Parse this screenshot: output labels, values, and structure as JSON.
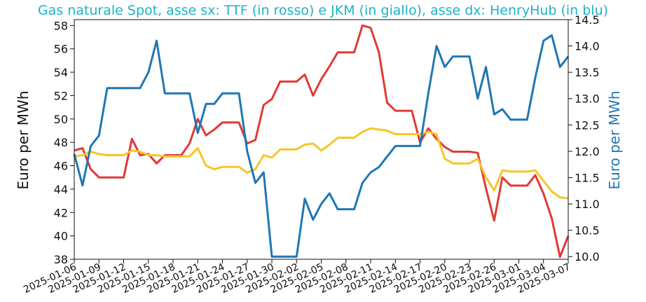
{
  "chart_data": {
    "type": "line",
    "title": "Gas naturale Spot, asse sx: TTF (in rosso) e JKM (in giallo), asse dx: HenryHub (in blu)",
    "ylabel_left": "Euro per MWh",
    "ylabel_right": "Euro per MWh",
    "ylim_left": [
      38,
      58.5
    ],
    "ylim_right": [
      9.95,
      14.5
    ],
    "yticks_left": [
      38,
      40,
      42,
      44,
      46,
      48,
      50,
      52,
      54,
      56,
      58
    ],
    "yticks_right": [
      "10.0",
      "10.5",
      "11.0",
      "11.5",
      "12.0",
      "12.5",
      "13.0",
      "13.5",
      "14.0",
      "14.5"
    ],
    "xticks": [
      "2025-01-06",
      "2025-01-09",
      "2025-01-12",
      "2025-01-15",
      "2025-01-18",
      "2025-01-21",
      "2025-01-24",
      "2025-01-27",
      "2025-01-30",
      "2025-02-02",
      "2025-02-05",
      "2025-02-08",
      "2025-02-11",
      "2025-02-14",
      "2025-02-17",
      "2025-02-20",
      "2025-02-23",
      "2025-02-26",
      "2025-03-01",
      "2025-03-04",
      "2025-03-07"
    ],
    "grid": false,
    "series": [
      {
        "name": "TTF (in rosso)",
        "axis": "left",
        "color": "#e03a33",
        "points": [
          [
            "2025-01-06",
            47.3
          ],
          [
            "2025-01-07",
            47.5
          ],
          [
            "2025-01-08",
            45.7
          ],
          [
            "2025-01-09",
            45.0
          ],
          [
            "2025-01-10",
            45.0
          ],
          [
            "2025-01-11",
            45.0
          ],
          [
            "2025-01-12",
            45.0
          ],
          [
            "2025-01-13",
            48.3
          ],
          [
            "2025-01-14",
            46.9
          ],
          [
            "2025-01-15",
            47.0
          ],
          [
            "2025-01-16",
            46.2
          ],
          [
            "2025-01-17",
            46.9
          ],
          [
            "2025-01-18",
            46.9
          ],
          [
            "2025-01-19",
            46.9
          ],
          [
            "2025-01-20",
            47.9
          ],
          [
            "2025-01-21",
            50.0
          ],
          [
            "2025-01-22",
            48.6
          ],
          [
            "2025-01-23",
            49.1
          ],
          [
            "2025-01-24",
            49.7
          ],
          [
            "2025-01-25",
            49.7
          ],
          [
            "2025-01-26",
            49.7
          ],
          [
            "2025-01-27",
            47.9
          ],
          [
            "2025-01-28",
            48.2
          ],
          [
            "2025-01-29",
            51.2
          ],
          [
            "2025-01-30",
            51.7
          ],
          [
            "2025-01-31",
            53.2
          ],
          [
            "2025-02-01",
            53.2
          ],
          [
            "2025-02-02",
            53.2
          ],
          [
            "2025-02-03",
            53.8
          ],
          [
            "2025-02-04",
            52.0
          ],
          [
            "2025-02-05",
            53.4
          ],
          [
            "2025-02-06",
            54.5
          ],
          [
            "2025-02-07",
            55.7
          ],
          [
            "2025-02-08",
            55.7
          ],
          [
            "2025-02-09",
            55.7
          ],
          [
            "2025-02-10",
            58.0
          ],
          [
            "2025-02-11",
            57.8
          ],
          [
            "2025-02-12",
            55.7
          ],
          [
            "2025-02-13",
            51.4
          ],
          [
            "2025-02-14",
            50.7
          ],
          [
            "2025-02-15",
            50.7
          ],
          [
            "2025-02-16",
            50.7
          ],
          [
            "2025-02-17",
            48.0
          ],
          [
            "2025-02-18",
            49.2
          ],
          [
            "2025-02-19",
            48.3
          ],
          [
            "2025-02-20",
            47.6
          ],
          [
            "2025-02-21",
            47.2
          ],
          [
            "2025-02-22",
            47.2
          ],
          [
            "2025-02-23",
            47.2
          ],
          [
            "2025-02-24",
            47.1
          ],
          [
            "2025-02-25",
            44.1
          ],
          [
            "2025-02-26",
            41.3
          ],
          [
            "2025-02-27",
            45.0
          ],
          [
            "2025-02-28",
            44.3
          ],
          [
            "2025-03-01",
            44.3
          ],
          [
            "2025-03-02",
            44.3
          ],
          [
            "2025-03-03",
            45.2
          ],
          [
            "2025-03-04",
            43.6
          ],
          [
            "2025-03-05",
            41.5
          ],
          [
            "2025-03-06",
            38.2
          ],
          [
            "2025-03-07",
            40.0
          ]
        ]
      },
      {
        "name": "JKM (in giallo)",
        "axis": "left",
        "color": "#f8c526",
        "points": [
          [
            "2025-01-06",
            46.8
          ],
          [
            "2025-01-07",
            46.9
          ],
          [
            "2025-01-08",
            47.2
          ],
          [
            "2025-01-09",
            47.0
          ],
          [
            "2025-01-10",
            46.9
          ],
          [
            "2025-01-11",
            46.9
          ],
          [
            "2025-01-12",
            46.9
          ],
          [
            "2025-01-13",
            47.3
          ],
          [
            "2025-01-14",
            47.2
          ],
          [
            "2025-01-15",
            46.9
          ],
          [
            "2025-01-16",
            46.9
          ],
          [
            "2025-01-17",
            46.8
          ],
          [
            "2025-01-18",
            46.8
          ],
          [
            "2025-01-19",
            46.8
          ],
          [
            "2025-01-20",
            46.8
          ],
          [
            "2025-01-21",
            47.5
          ],
          [
            "2025-01-22",
            46.0
          ],
          [
            "2025-01-23",
            45.7
          ],
          [
            "2025-01-24",
            45.9
          ],
          [
            "2025-01-25",
            45.9
          ],
          [
            "2025-01-26",
            45.9
          ],
          [
            "2025-01-27",
            45.4
          ],
          [
            "2025-01-28",
            45.7
          ],
          [
            "2025-01-29",
            46.9
          ],
          [
            "2025-01-30",
            46.7
          ],
          [
            "2025-01-31",
            47.4
          ],
          [
            "2025-02-01",
            47.4
          ],
          [
            "2025-02-02",
            47.4
          ],
          [
            "2025-02-03",
            47.8
          ],
          [
            "2025-02-04",
            47.9
          ],
          [
            "2025-02-05",
            47.3
          ],
          [
            "2025-02-06",
            47.8
          ],
          [
            "2025-02-07",
            48.4
          ],
          [
            "2025-02-08",
            48.4
          ],
          [
            "2025-02-09",
            48.4
          ],
          [
            "2025-02-10",
            48.9
          ],
          [
            "2025-02-11",
            49.2
          ],
          [
            "2025-02-12",
            49.1
          ],
          [
            "2025-02-13",
            49.0
          ],
          [
            "2025-02-14",
            48.7
          ],
          [
            "2025-02-15",
            48.7
          ],
          [
            "2025-02-16",
            48.7
          ],
          [
            "2025-02-17",
            48.7
          ],
          [
            "2025-02-18",
            48.9
          ],
          [
            "2025-02-19",
            48.7
          ],
          [
            "2025-02-20",
            46.6
          ],
          [
            "2025-02-21",
            46.2
          ],
          [
            "2025-02-22",
            46.2
          ],
          [
            "2025-02-23",
            46.2
          ],
          [
            "2025-02-24",
            46.6
          ],
          [
            "2025-02-25",
            45.0
          ],
          [
            "2025-02-26",
            43.9
          ],
          [
            "2025-02-27",
            45.6
          ],
          [
            "2025-02-28",
            45.5
          ],
          [
            "2025-03-01",
            45.5
          ],
          [
            "2025-03-02",
            45.5
          ],
          [
            "2025-03-03",
            45.6
          ],
          [
            "2025-03-04",
            44.7
          ],
          [
            "2025-03-05",
            43.8
          ],
          [
            "2025-03-06",
            43.3
          ],
          [
            "2025-03-07",
            43.2
          ]
        ]
      },
      {
        "name": "HenryHub (in blu)",
        "axis": "right",
        "color": "#1f77b4",
        "points": [
          [
            "2025-01-06",
            11.95
          ],
          [
            "2025-01-07",
            11.35
          ],
          [
            "2025-01-08",
            12.1
          ],
          [
            "2025-01-09",
            12.3
          ],
          [
            "2025-01-10",
            13.2
          ],
          [
            "2025-01-11",
            13.2
          ],
          [
            "2025-01-12",
            13.2
          ],
          [
            "2025-01-13",
            13.2
          ],
          [
            "2025-01-14",
            13.2
          ],
          [
            "2025-01-15",
            13.5
          ],
          [
            "2025-01-16",
            14.1
          ],
          [
            "2025-01-17",
            13.1
          ],
          [
            "2025-01-18",
            13.1
          ],
          [
            "2025-01-19",
            13.1
          ],
          [
            "2025-01-20",
            13.1
          ],
          [
            "2025-01-21",
            12.35
          ],
          [
            "2025-01-22",
            12.9
          ],
          [
            "2025-01-23",
            12.9
          ],
          [
            "2025-01-24",
            13.1
          ],
          [
            "2025-01-25",
            13.1
          ],
          [
            "2025-01-26",
            13.1
          ],
          [
            "2025-01-27",
            12.0
          ],
          [
            "2025-01-28",
            11.4
          ],
          [
            "2025-01-29",
            11.6
          ],
          [
            "2025-01-30",
            10.0
          ],
          [
            "2025-01-31",
            10.0
          ],
          [
            "2025-02-01",
            10.0
          ],
          [
            "2025-02-02",
            10.0
          ],
          [
            "2025-02-03",
            11.1
          ],
          [
            "2025-02-04",
            10.7
          ],
          [
            "2025-02-05",
            11.0
          ],
          [
            "2025-02-06",
            11.2
          ],
          [
            "2025-02-07",
            10.9
          ],
          [
            "2025-02-08",
            10.9
          ],
          [
            "2025-02-09",
            10.9
          ],
          [
            "2025-02-10",
            11.4
          ],
          [
            "2025-02-11",
            11.6
          ],
          [
            "2025-02-12",
            11.7
          ],
          [
            "2025-02-13",
            11.9
          ],
          [
            "2025-02-14",
            12.1
          ],
          [
            "2025-02-15",
            12.1
          ],
          [
            "2025-02-16",
            12.1
          ],
          [
            "2025-02-17",
            12.1
          ],
          [
            "2025-02-18",
            13.1
          ],
          [
            "2025-02-19",
            14.0
          ],
          [
            "2025-02-20",
            13.6
          ],
          [
            "2025-02-21",
            13.8
          ],
          [
            "2025-02-22",
            13.8
          ],
          [
            "2025-02-23",
            13.8
          ],
          [
            "2025-02-24",
            13.0
          ],
          [
            "2025-02-25",
            13.6
          ],
          [
            "2025-02-26",
            12.7
          ],
          [
            "2025-02-27",
            12.8
          ],
          [
            "2025-02-28",
            12.6
          ],
          [
            "2025-03-01",
            12.6
          ],
          [
            "2025-03-02",
            12.6
          ],
          [
            "2025-03-03",
            13.4
          ],
          [
            "2025-03-04",
            14.1
          ],
          [
            "2025-03-05",
            14.2
          ],
          [
            "2025-03-06",
            13.6
          ],
          [
            "2025-03-07",
            13.8
          ]
        ]
      }
    ]
  }
}
